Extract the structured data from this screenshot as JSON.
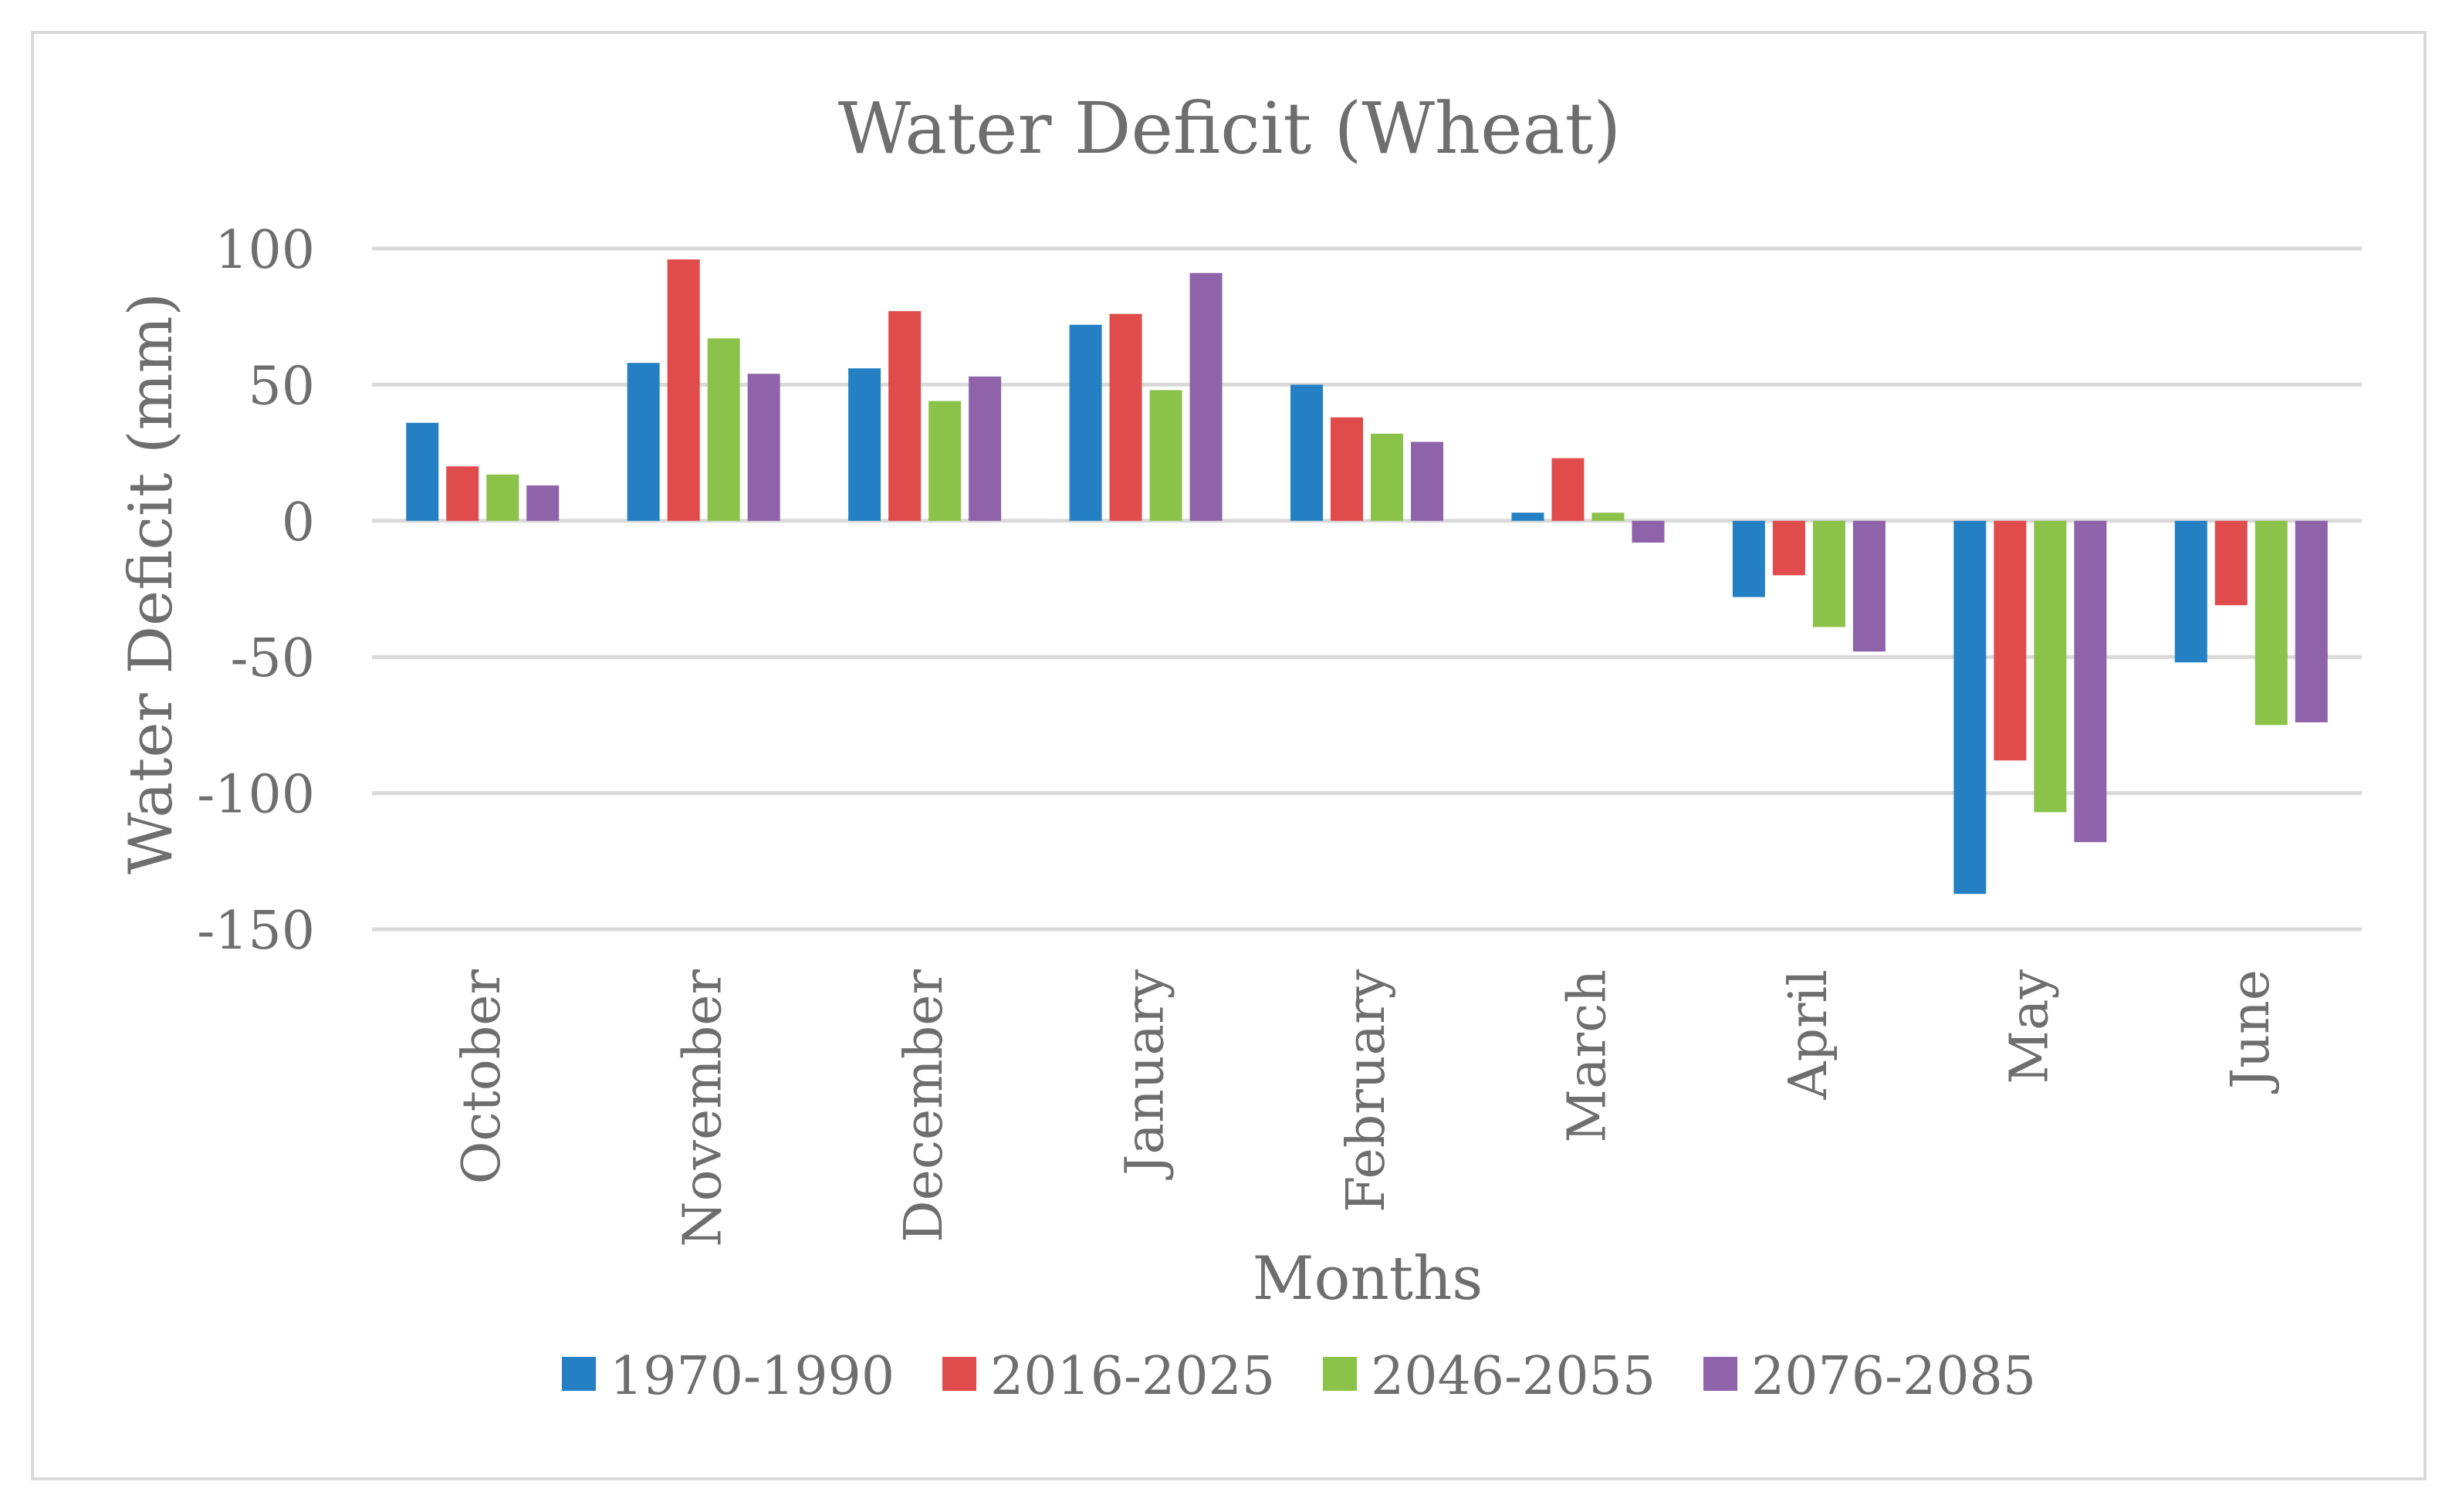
{
  "chart_data": {
    "type": "bar",
    "title": "Water Deficit (Wheat)",
    "xlabel": "Months",
    "ylabel": "Water Deficit (mm)",
    "ylim": [
      -150,
      100
    ],
    "yticks": [
      100,
      50,
      0,
      -50,
      -100,
      -150
    ],
    "grid": true,
    "legend_position": "bottom",
    "categories": [
      "October",
      "November",
      "December",
      "January",
      "February",
      "March",
      "April",
      "May",
      "June"
    ],
    "series": [
      {
        "name": "1970-1990",
        "color": "#2580c3",
        "values": [
          36,
          58,
          56,
          72,
          50,
          3,
          -28,
          -137,
          -52
        ]
      },
      {
        "name": "2016-2025",
        "color": "#e04b4b",
        "values": [
          20,
          96,
          77,
          76,
          38,
          23,
          -20,
          -88,
          -31
        ]
      },
      {
        "name": "2046-2055",
        "color": "#8bc34a",
        "values": [
          17,
          67,
          44,
          48,
          32,
          3,
          -39,
          -107,
          -75
        ]
      },
      {
        "name": "2076-2085",
        "color": "#8e63aa",
        "values": [
          13,
          54,
          53,
          91,
          29,
          -8,
          -48,
          -118,
          -74
        ]
      }
    ]
  }
}
